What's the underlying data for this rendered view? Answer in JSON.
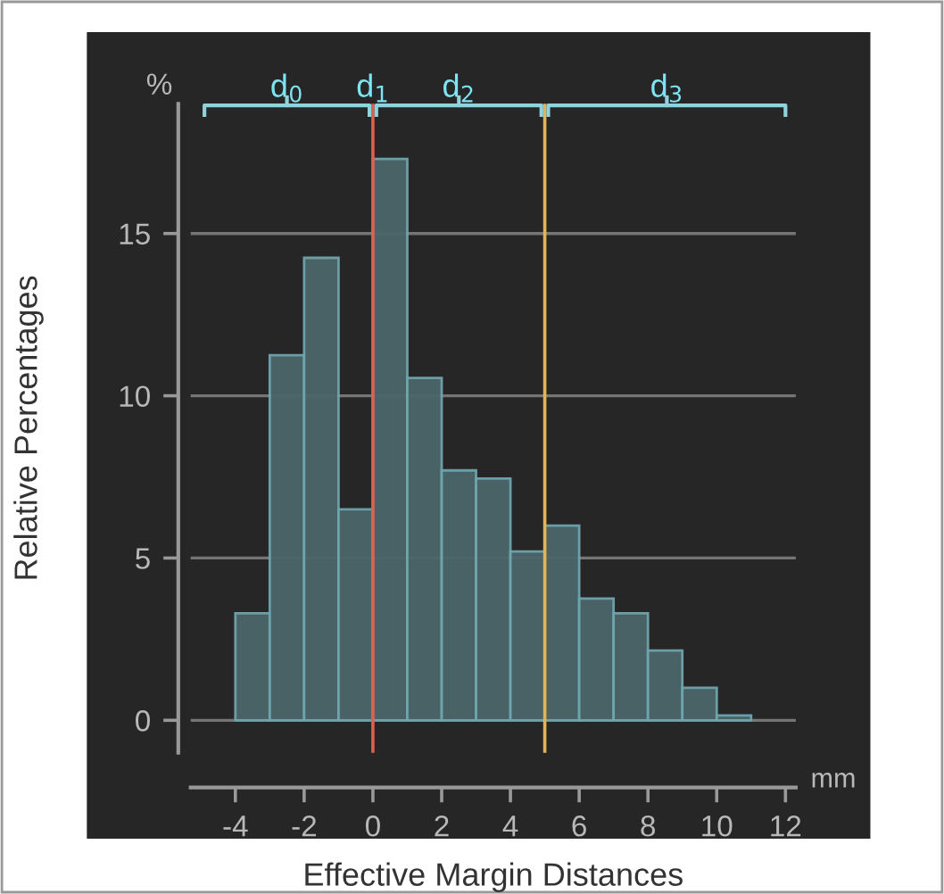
{
  "chart_data": {
    "type": "histogram",
    "xlabel": "Effective Margin Distances",
    "ylabel": "Relative Percentages",
    "bins": [
      -4,
      -3,
      -2,
      -1,
      0,
      1,
      2,
      3,
      4,
      5,
      6,
      7,
      8,
      9,
      10,
      11
    ],
    "values": [
      3.3,
      11.25,
      14.25,
      6.5,
      17.3,
      10.55,
      7.7,
      7.45,
      5.2,
      6.0,
      3.75,
      3.3,
      2.15,
      1.0,
      0.15
    ],
    "color": "#4a6669",
    "xlim": [
      -5.3,
      12.3
    ],
    "xticks": [
      -4,
      -2,
      0,
      2,
      4,
      6,
      8,
      10,
      12
    ],
    "ylim": [
      -1,
      19
    ],
    "yticks": [
      0,
      5,
      10,
      15
    ],
    "grid": "y",
    "ref_lines": [
      {
        "axis": "x",
        "value": 0,
        "label": "d$_{1}$",
        "color": "#d9634c"
      },
      {
        "axis": "x",
        "value": 5,
        "label": null,
        "color": "#e3b35a"
      }
    ],
    "annotations": [
      "%",
      "d$_{0}$",
      "d$_{2}$",
      "d$_{3}$",
      "mm"
    ]
  }
}
